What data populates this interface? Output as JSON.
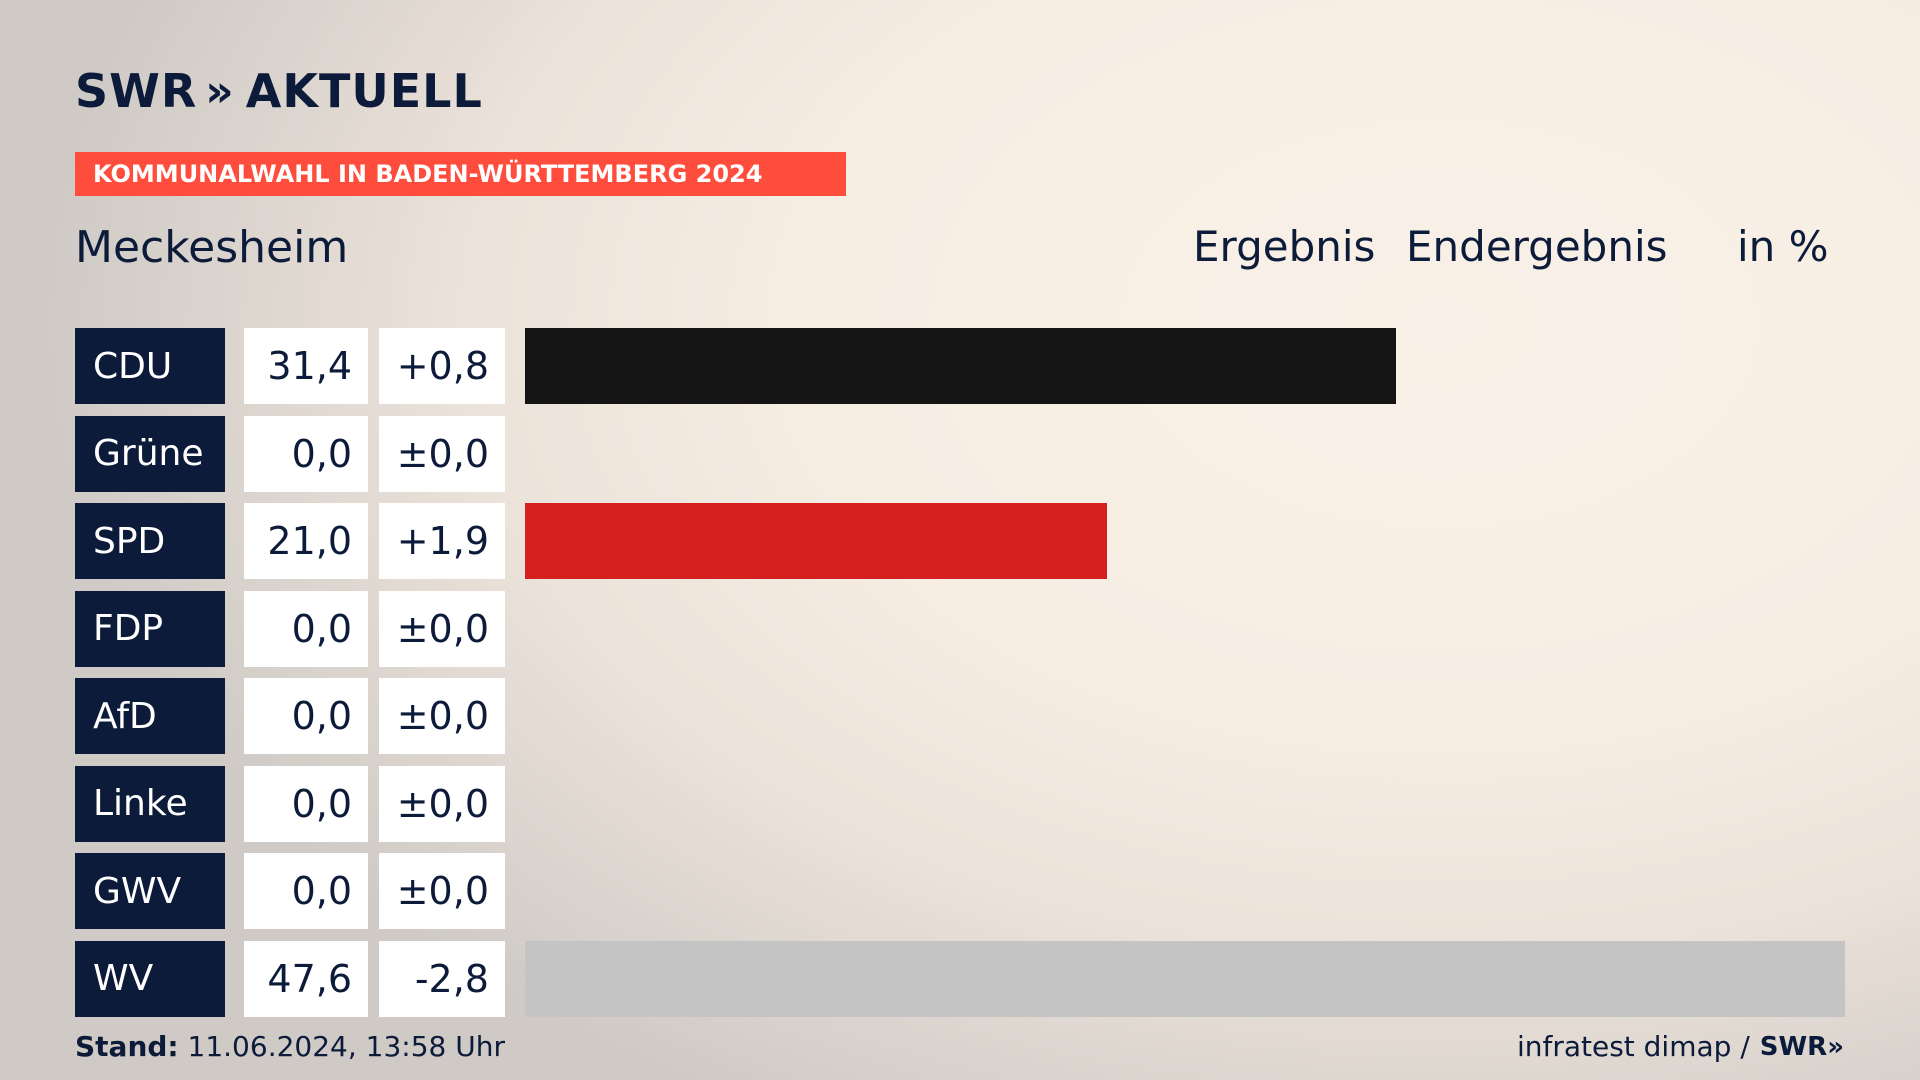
{
  "brand": {
    "logo_text": "SWR",
    "logo_chevrons": "»",
    "logo_suffix": "AKTUELL"
  },
  "banner": "KOMMUNALWAHL IN BADEN-WÜRTTEMBERG 2024",
  "place": "Meckesheim",
  "headers": {
    "result": "Ergebnis",
    "final": "Endergebnis",
    "unit": "in %"
  },
  "colors": {
    "CDU": "#141414",
    "Grüne": "#3a8f3a",
    "SPD": "#d62020",
    "FDP": "#f0d000",
    "AfD": "#1e8ccd",
    "Linke": "#c0267a",
    "GWV": "#888888",
    "WV": "#c4c4c4"
  },
  "chart_data": {
    "type": "bar",
    "orientation": "horizontal",
    "categories": [
      "CDU",
      "Grüne",
      "SPD",
      "FDP",
      "AfD",
      "Linke",
      "GWV",
      "WV"
    ],
    "values": [
      31.4,
      0.0,
      21.0,
      0.0,
      0.0,
      0.0,
      0.0,
      47.6
    ],
    "value_labels": [
      "31,4",
      "0,0",
      "21,0",
      "0,0",
      "0,0",
      "0,0",
      "0,0",
      "47,6"
    ],
    "diff_labels": [
      "+0,8",
      "±0,0",
      "+1,9",
      "±0,0",
      "±0,0",
      "±0,0",
      "±0,0",
      "-2,8"
    ],
    "xlim": [
      0,
      47.6
    ]
  },
  "footer": {
    "stand_label": "Stand:",
    "stand_value": "11.06.2024, 13:58 Uhr",
    "source": "infratest dimap /",
    "source_logo": "SWR»"
  }
}
